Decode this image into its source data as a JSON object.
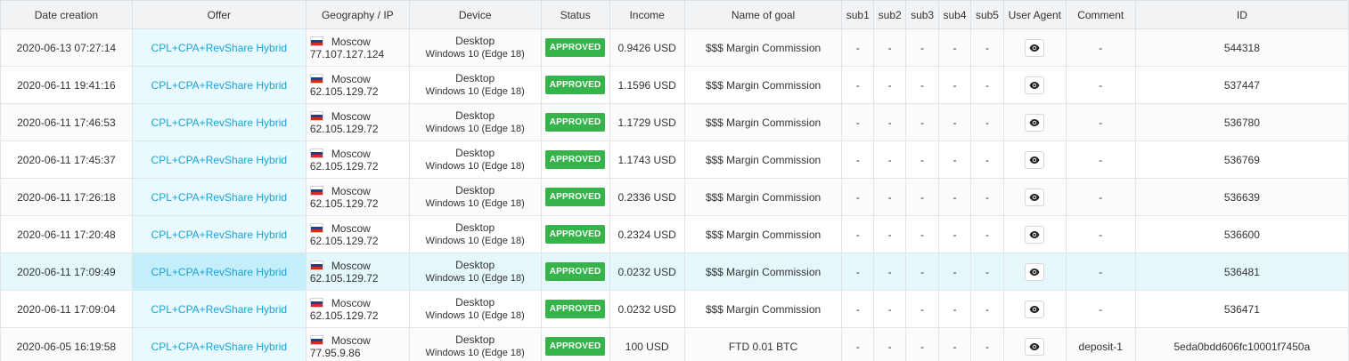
{
  "columns": [
    "Date creation",
    "Offer",
    "Geography / IP",
    "Device",
    "Status",
    "Income",
    "Name of goal",
    "sub1",
    "sub2",
    "sub3",
    "sub4",
    "sub5",
    "User Agent",
    "Comment",
    "ID"
  ],
  "colors": {
    "offer_link": "#1aa3d8",
    "status_approved": "#36b34a",
    "row_highlight": "#e4f7fb"
  },
  "user_agent_icon": "eye-icon",
  "rows": [
    {
      "date": "2020-06-13 07:27:14",
      "offer": "CPL+CPA+RevShare Hybrid",
      "city": "Moscow",
      "ip": "77.107.127.124",
      "device_type": "Desktop",
      "device_os": "Windows 10 (Edge 18)",
      "status": "APPROVED",
      "income": "0.9426 USD",
      "goal": "$$$ Margin Commission",
      "sub1": "-",
      "sub2": "-",
      "sub3": "-",
      "sub4": "-",
      "sub5": "-",
      "comment": "-",
      "id": "544318"
    },
    {
      "date": "2020-06-11 19:41:16",
      "offer": "CPL+CPA+RevShare Hybrid",
      "city": "Moscow",
      "ip": "62.105.129.72",
      "device_type": "Desktop",
      "device_os": "Windows 10 (Edge 18)",
      "status": "APPROVED",
      "income": "1.1596 USD",
      "goal": "$$$ Margin Commission",
      "sub1": "-",
      "sub2": "-",
      "sub3": "-",
      "sub4": "-",
      "sub5": "-",
      "comment": "-",
      "id": "537447"
    },
    {
      "date": "2020-06-11 17:46:53",
      "offer": "CPL+CPA+RevShare Hybrid",
      "city": "Moscow",
      "ip": "62.105.129.72",
      "device_type": "Desktop",
      "device_os": "Windows 10 (Edge 18)",
      "status": "APPROVED",
      "income": "1.1729 USD",
      "goal": "$$$ Margin Commission",
      "sub1": "-",
      "sub2": "-",
      "sub3": "-",
      "sub4": "-",
      "sub5": "-",
      "comment": "-",
      "id": "536780"
    },
    {
      "date": "2020-06-11 17:45:37",
      "offer": "CPL+CPA+RevShare Hybrid",
      "city": "Moscow",
      "ip": "62.105.129.72",
      "device_type": "Desktop",
      "device_os": "Windows 10 (Edge 18)",
      "status": "APPROVED",
      "income": "1.1743 USD",
      "goal": "$$$ Margin Commission",
      "sub1": "-",
      "sub2": "-",
      "sub3": "-",
      "sub4": "-",
      "sub5": "-",
      "comment": "-",
      "id": "536769"
    },
    {
      "date": "2020-06-11 17:26:18",
      "offer": "CPL+CPA+RevShare Hybrid",
      "city": "Moscow",
      "ip": "62.105.129.72",
      "device_type": "Desktop",
      "device_os": "Windows 10 (Edge 18)",
      "status": "APPROVED",
      "income": "0.2336 USD",
      "goal": "$$$ Margin Commission",
      "sub1": "-",
      "sub2": "-",
      "sub3": "-",
      "sub4": "-",
      "sub5": "-",
      "comment": "-",
      "id": "536639"
    },
    {
      "date": "2020-06-11 17:20:48",
      "offer": "CPL+CPA+RevShare Hybrid",
      "city": "Moscow",
      "ip": "62.105.129.72",
      "device_type": "Desktop",
      "device_os": "Windows 10 (Edge 18)",
      "status": "APPROVED",
      "income": "0.2324 USD",
      "goal": "$$$ Margin Commission",
      "sub1": "-",
      "sub2": "-",
      "sub3": "-",
      "sub4": "-",
      "sub5": "-",
      "comment": "-",
      "id": "536600"
    },
    {
      "date": "2020-06-11 17:09:49",
      "offer": "CPL+CPA+RevShare Hybrid",
      "city": "Moscow",
      "ip": "62.105.129.72",
      "device_type": "Desktop",
      "device_os": "Windows 10 (Edge 18)",
      "status": "APPROVED",
      "income": "0.0232 USD",
      "goal": "$$$ Margin Commission",
      "sub1": "-",
      "sub2": "-",
      "sub3": "-",
      "sub4": "-",
      "sub5": "-",
      "comment": "-",
      "id": "536481"
    },
    {
      "date": "2020-06-11 17:09:04",
      "offer": "CPL+CPA+RevShare Hybrid",
      "city": "Moscow",
      "ip": "62.105.129.72",
      "device_type": "Desktop",
      "device_os": "Windows 10 (Edge 18)",
      "status": "APPROVED",
      "income": "0.0232 USD",
      "goal": "$$$ Margin Commission",
      "sub1": "-",
      "sub2": "-",
      "sub3": "-",
      "sub4": "-",
      "sub5": "-",
      "comment": "-",
      "id": "536471"
    },
    {
      "date": "2020-06-05 16:19:58",
      "offer": "CPL+CPA+RevShare Hybrid",
      "city": "Moscow",
      "ip": "77.95.9.86",
      "device_type": "Desktop",
      "device_os": "Windows 10 (Edge 18)",
      "status": "APPROVED",
      "income": "100 USD",
      "goal": "FTD 0.01 BTC",
      "sub1": "-",
      "sub2": "-",
      "sub3": "-",
      "sub4": "-",
      "sub5": "-",
      "comment": "deposit-1",
      "id": "5eda0bdd606fc10001f7450a"
    }
  ]
}
